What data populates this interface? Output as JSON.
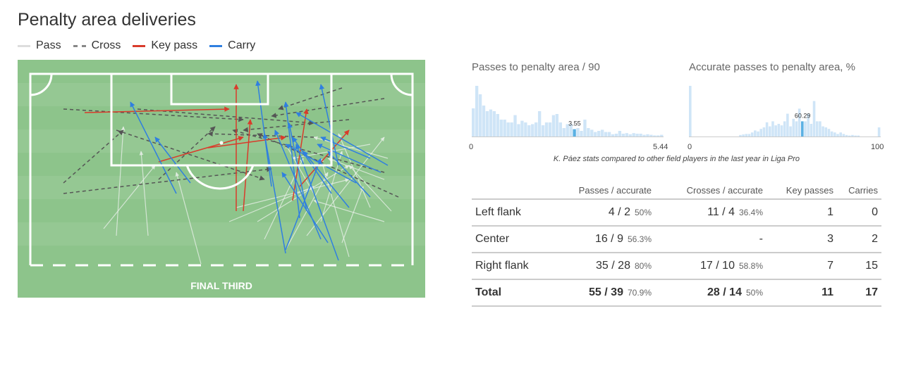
{
  "title": "Penalty area deliveries",
  "legend": [
    {
      "label": "Pass",
      "color": "#dddddd",
      "style": "solid"
    },
    {
      "label": "Cross",
      "color": "#888888",
      "style": "dashed"
    },
    {
      "label": "Key pass",
      "color": "#d93b2b",
      "style": "solid"
    },
    {
      "label": "Carry",
      "color": "#2f7fe0",
      "style": "solid"
    }
  ],
  "pitch": {
    "label": "FINAL THIRD",
    "grass_color": "#8dc48b",
    "stripe_color": "#95c893",
    "line_color": "#ffffff"
  },
  "caption": "K. Páez stats compared to other field players in the last year in Liga Pro",
  "chart_data": [
    {
      "type": "bar",
      "title": "Passes to penalty area / 90",
      "xlim": [
        0,
        5.44
      ],
      "xtick_labels": [
        "0",
        "5.44"
      ],
      "highlight": {
        "label": "3.55",
        "value": 3.55,
        "bin": 29
      },
      "bar_color": "#cfe5f7",
      "highlight_color": "#5ab0e3",
      "values": [
        50,
        90,
        75,
        55,
        45,
        48,
        45,
        40,
        30,
        30,
        25,
        25,
        38,
        22,
        28,
        25,
        20,
        22,
        25,
        45,
        20,
        25,
        25,
        38,
        40,
        25,
        15,
        22,
        22,
        13,
        15,
        10,
        30,
        15,
        12,
        8,
        10,
        12,
        8,
        8,
        4,
        5,
        10,
        5,
        6,
        4,
        6,
        5,
        5,
        3,
        4,
        3,
        2,
        2,
        3
      ]
    },
    {
      "type": "bar",
      "title": "Accurate passes to penalty area, %",
      "xlim": [
        0,
        100
      ],
      "xtick_labels": [
        "0",
        "100"
      ],
      "highlight": {
        "label": "60.29",
        "value": 60.29,
        "bin": 38
      },
      "bar_color": "#cfe5f7",
      "highlight_color": "#5ab0e3",
      "values": [
        100,
        0,
        0,
        0,
        0,
        0,
        0,
        0,
        0,
        0,
        0,
        0,
        0,
        0,
        0,
        0,
        0,
        3,
        4,
        5,
        5,
        8,
        12,
        10,
        15,
        18,
        28,
        20,
        30,
        22,
        25,
        22,
        30,
        45,
        20,
        35,
        30,
        55,
        30,
        30,
        45,
        25,
        70,
        30,
        30,
        20,
        18,
        15,
        10,
        8,
        5,
        8,
        5,
        3,
        2,
        3,
        2,
        2,
        0,
        0,
        0,
        0,
        0,
        0,
        18
      ]
    }
  ],
  "table": {
    "headers": [
      "",
      "Passes / accurate",
      "Crosses / accurate",
      "Key passes",
      "Carries"
    ],
    "rows": [
      {
        "label": "Left flank",
        "passes": "4 / 2",
        "passes_pct": "50%",
        "crosses": "11 / 4",
        "crosses_pct": "36.4%",
        "key": "1",
        "carries": "0"
      },
      {
        "label": "Center",
        "passes": "16 / 9",
        "passes_pct": "56.3%",
        "crosses": "-",
        "crosses_pct": "",
        "key": "3",
        "carries": "2"
      },
      {
        "label": "Right flank",
        "passes": "35 / 28",
        "passes_pct": "80%",
        "crosses": "17 / 10",
        "crosses_pct": "58.8%",
        "key": "7",
        "carries": "15"
      },
      {
        "label": "Total",
        "passes": "55 / 39",
        "passes_pct": "70.9%",
        "crosses": "28 / 14",
        "crosses_pct": "50%",
        "key": "11",
        "carries": "17"
      }
    ]
  }
}
